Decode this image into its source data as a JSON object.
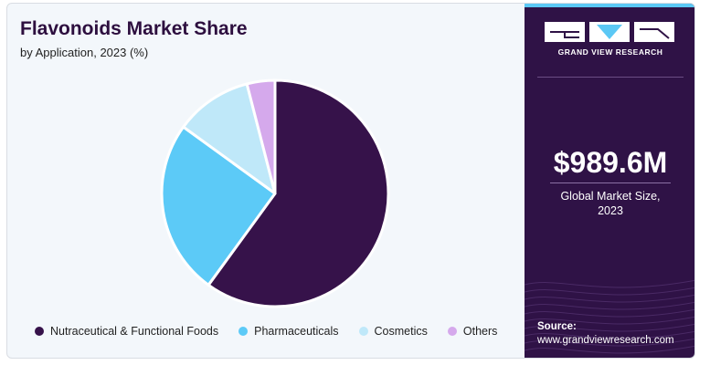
{
  "title": "Flavonoids Market Share",
  "subtitle": "by Application, 2023 (%)",
  "chart_data": {
    "type": "pie",
    "categories": [
      "Nutraceutical & Functional Foods",
      "Pharmaceuticals",
      "Cosmetics",
      "Others"
    ],
    "values": [
      60,
      25,
      11,
      4
    ],
    "colors": [
      "#36124a",
      "#5ccaf7",
      "#bfe8f9",
      "#d5a9ec"
    ],
    "title": "Flavonoids Market Share",
    "legend_position": "bottom"
  },
  "side_panel": {
    "logo_text": "GRAND VIEW RESEARCH",
    "market_value": "$989.6M",
    "market_caption_line1": "Global Market Size,",
    "market_caption_line2": "2023",
    "source_label": "Source:",
    "source_url": "www.grandviewresearch.com"
  }
}
